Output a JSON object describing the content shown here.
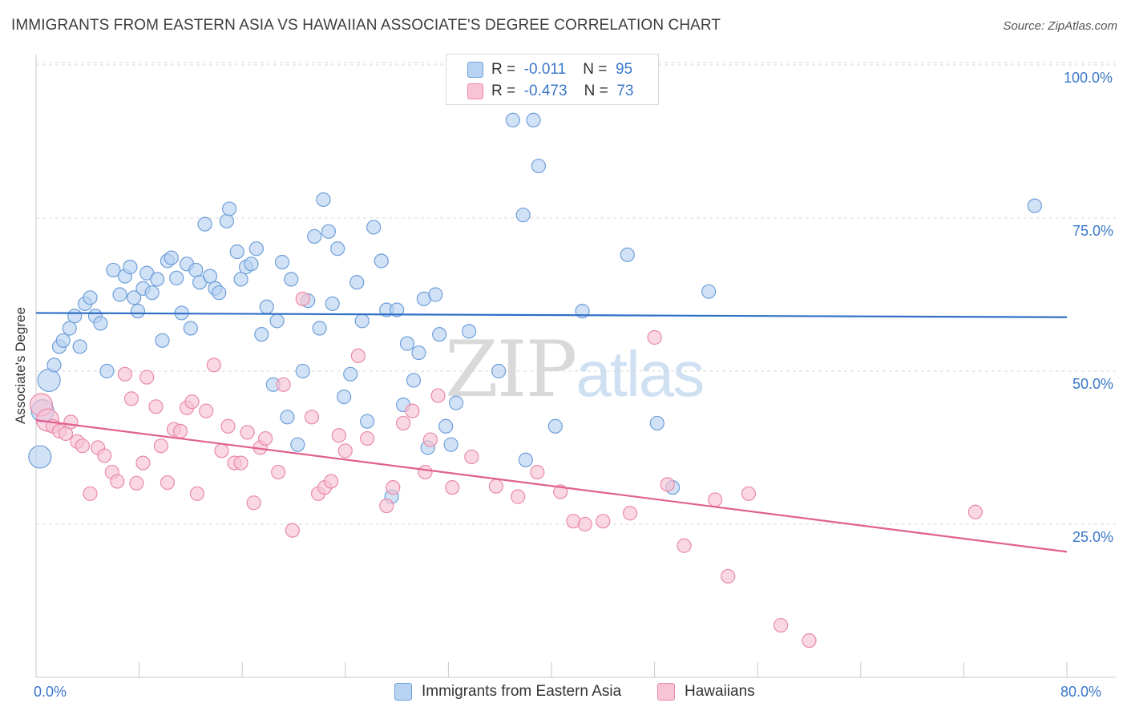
{
  "header": {
    "title": "IMMIGRANTS FROM EASTERN ASIA VS HAWAIIAN ASSOCIATE'S DEGREE CORRELATION CHART",
    "source": "Source: ZipAtlas.com"
  },
  "legend_top": {
    "rows": [
      {
        "r_label": "R =",
        "r_value": "-0.011",
        "n_label": "N =",
        "n_value": "95"
      },
      {
        "r_label": "R =",
        "r_value": "-0.473",
        "n_label": "N =",
        "n_value": "73"
      }
    ]
  },
  "watermark": {
    "zip": "ZIP",
    "atlas": "atlas"
  },
  "colors": {
    "blue_fill": "#b8d3f2",
    "blue_stroke": "#6f9fd8",
    "blue_line": "#2f6fc6",
    "pink_fill": "#f8c3d4",
    "pink_stroke": "#e98aa8",
    "pink_line": "#e0608f",
    "tick_text": "#3a78c9",
    "grid": "#d8d8d8"
  },
  "chart_data": {
    "type": "scatter",
    "title": "IMMIGRANTS FROM EASTERN ASIA VS HAWAIIAN ASSOCIATE'S DEGREE CORRELATION CHART",
    "xlabel": "",
    "ylabel": "Associate's Degree",
    "xlim": [
      0,
      80
    ],
    "ylim": [
      0,
      105
    ],
    "x_tick_labels": [
      "0.0%",
      "80.0%"
    ],
    "y_tick_labels": [
      "25.0%",
      "50.0%",
      "75.0%",
      "100.0%"
    ],
    "y_ticks": [
      25,
      50,
      75,
      100
    ],
    "grid": true,
    "legend_placement": "bottom-center",
    "series": [
      {
        "name": "Immigrants from Eastern Asia",
        "color": "#b8d3f2",
        "trend": {
          "x": [
            0,
            80
          ],
          "y": [
            59.5,
            58.8
          ]
        },
        "points": [
          [
            0.3,
            36.0
          ],
          [
            0.5,
            43.5
          ],
          [
            1.0,
            48.5
          ],
          [
            1.4,
            51.0
          ],
          [
            1.8,
            54.0
          ],
          [
            2.1,
            55.0
          ],
          [
            2.6,
            57.0
          ],
          [
            3.0,
            59.0
          ],
          [
            3.4,
            54.0
          ],
          [
            3.8,
            61.0
          ],
          [
            4.2,
            62.0
          ],
          [
            4.6,
            59.0
          ],
          [
            5.0,
            57.8
          ],
          [
            5.5,
            50.0
          ],
          [
            6.0,
            66.5
          ],
          [
            6.5,
            62.5
          ],
          [
            6.9,
            65.5
          ],
          [
            7.3,
            67.0
          ],
          [
            7.6,
            62.0
          ],
          [
            7.9,
            59.8
          ],
          [
            8.3,
            63.5
          ],
          [
            8.6,
            66.0
          ],
          [
            9.0,
            62.8
          ],
          [
            9.4,
            65.0
          ],
          [
            9.8,
            55.0
          ],
          [
            10.2,
            68.0
          ],
          [
            10.5,
            68.5
          ],
          [
            10.9,
            65.2
          ],
          [
            11.3,
            59.5
          ],
          [
            11.7,
            67.5
          ],
          [
            12.0,
            57.0
          ],
          [
            12.4,
            66.5
          ],
          [
            12.7,
            64.5
          ],
          [
            13.1,
            74.0
          ],
          [
            13.5,
            65.5
          ],
          [
            13.9,
            63.5
          ],
          [
            14.2,
            62.8
          ],
          [
            14.8,
            74.5
          ],
          [
            15.0,
            76.5
          ],
          [
            15.6,
            69.5
          ],
          [
            15.9,
            65.0
          ],
          [
            16.3,
            67.0
          ],
          [
            16.7,
            67.5
          ],
          [
            17.1,
            70.0
          ],
          [
            17.5,
            56.0
          ],
          [
            17.9,
            60.5
          ],
          [
            18.4,
            47.8
          ],
          [
            18.7,
            58.2
          ],
          [
            19.1,
            67.8
          ],
          [
            19.5,
            42.5
          ],
          [
            19.8,
            65.0
          ],
          [
            20.3,
            38.0
          ],
          [
            20.7,
            50.0
          ],
          [
            21.1,
            61.5
          ],
          [
            21.6,
            72.0
          ],
          [
            22.0,
            57.0
          ],
          [
            22.3,
            78.0
          ],
          [
            22.7,
            72.8
          ],
          [
            23.0,
            61.0
          ],
          [
            23.4,
            70.0
          ],
          [
            23.9,
            45.8
          ],
          [
            24.4,
            49.5
          ],
          [
            24.9,
            64.5
          ],
          [
            25.3,
            58.2
          ],
          [
            25.7,
            41.8
          ],
          [
            26.2,
            73.5
          ],
          [
            26.8,
            68.0
          ],
          [
            27.2,
            60.0
          ],
          [
            27.6,
            29.5
          ],
          [
            28.0,
            60.0
          ],
          [
            28.5,
            44.5
          ],
          [
            28.8,
            54.5
          ],
          [
            29.3,
            48.5
          ],
          [
            29.7,
            53.0
          ],
          [
            30.1,
            61.8
          ],
          [
            30.4,
            37.5
          ],
          [
            31.0,
            62.5
          ],
          [
            31.3,
            56.0
          ],
          [
            31.8,
            41.0
          ],
          [
            32.2,
            38.0
          ],
          [
            32.6,
            44.8
          ],
          [
            33.6,
            56.5
          ],
          [
            35.9,
            50.0
          ],
          [
            37.0,
            91.0
          ],
          [
            37.8,
            75.5
          ],
          [
            38.6,
            91.0
          ],
          [
            38.0,
            35.5
          ],
          [
            39.0,
            83.5
          ],
          [
            40.3,
            41.0
          ],
          [
            42.4,
            59.8
          ],
          [
            45.9,
            69.0
          ],
          [
            48.2,
            41.5
          ],
          [
            49.4,
            31.0
          ],
          [
            52.2,
            63.0
          ],
          [
            77.5,
            77.0
          ]
        ]
      },
      {
        "name": "Hawaiians",
        "color": "#f8c3d4",
        "trend": {
          "x": [
            0,
            80
          ],
          "y": [
            42.0,
            20.5
          ]
        },
        "points": [
          [
            0.4,
            44.5
          ],
          [
            0.9,
            42.0
          ],
          [
            1.3,
            41.0
          ],
          [
            1.8,
            40.2
          ],
          [
            2.3,
            39.8
          ],
          [
            2.7,
            41.7
          ],
          [
            3.2,
            38.5
          ],
          [
            3.6,
            37.8
          ],
          [
            4.2,
            30.0
          ],
          [
            4.8,
            37.5
          ],
          [
            5.3,
            36.2
          ],
          [
            5.9,
            33.5
          ],
          [
            6.3,
            32.0
          ],
          [
            6.9,
            49.5
          ],
          [
            7.4,
            45.5
          ],
          [
            7.8,
            31.7
          ],
          [
            8.3,
            35.0
          ],
          [
            8.6,
            49.0
          ],
          [
            9.3,
            44.2
          ],
          [
            9.7,
            37.8
          ],
          [
            10.2,
            31.8
          ],
          [
            10.7,
            40.5
          ],
          [
            11.2,
            40.2
          ],
          [
            11.7,
            44.0
          ],
          [
            12.1,
            45.0
          ],
          [
            12.5,
            30.0
          ],
          [
            13.2,
            43.5
          ],
          [
            13.8,
            51.0
          ],
          [
            14.4,
            37.0
          ],
          [
            14.9,
            41.0
          ],
          [
            15.4,
            35.0
          ],
          [
            15.9,
            35.0
          ],
          [
            16.4,
            40.0
          ],
          [
            16.9,
            28.5
          ],
          [
            17.4,
            37.5
          ],
          [
            17.8,
            39.0
          ],
          [
            18.8,
            33.5
          ],
          [
            19.2,
            47.8
          ],
          [
            19.9,
            24.0
          ],
          [
            20.7,
            61.8
          ],
          [
            21.4,
            42.5
          ],
          [
            21.9,
            30.0
          ],
          [
            22.4,
            31.0
          ],
          [
            22.9,
            32.0
          ],
          [
            23.5,
            39.5
          ],
          [
            24.0,
            37.0
          ],
          [
            25.0,
            52.5
          ],
          [
            25.7,
            39.0
          ],
          [
            27.2,
            28.0
          ],
          [
            27.7,
            31.0
          ],
          [
            28.5,
            41.5
          ],
          [
            29.2,
            43.5
          ],
          [
            30.2,
            33.5
          ],
          [
            30.6,
            38.8
          ],
          [
            31.2,
            46.0
          ],
          [
            32.3,
            31.0
          ],
          [
            33.8,
            36.0
          ],
          [
            35.7,
            31.2
          ],
          [
            37.4,
            29.5
          ],
          [
            38.9,
            33.5
          ],
          [
            40.7,
            30.3
          ],
          [
            41.7,
            25.5
          ],
          [
            42.6,
            25.0
          ],
          [
            44.0,
            25.5
          ],
          [
            46.1,
            26.8
          ],
          [
            48.0,
            55.5
          ],
          [
            49.0,
            31.5
          ],
          [
            50.3,
            21.5
          ],
          [
            52.7,
            29.0
          ],
          [
            53.7,
            16.5
          ],
          [
            55.3,
            30.0
          ],
          [
            57.8,
            8.5
          ],
          [
            60.0,
            6.0
          ],
          [
            72.9,
            27.0
          ]
        ]
      }
    ]
  },
  "legend_bottom": {
    "items": [
      {
        "label": "Immigrants from Eastern Asia"
      },
      {
        "label": "Hawaiians"
      }
    ]
  }
}
